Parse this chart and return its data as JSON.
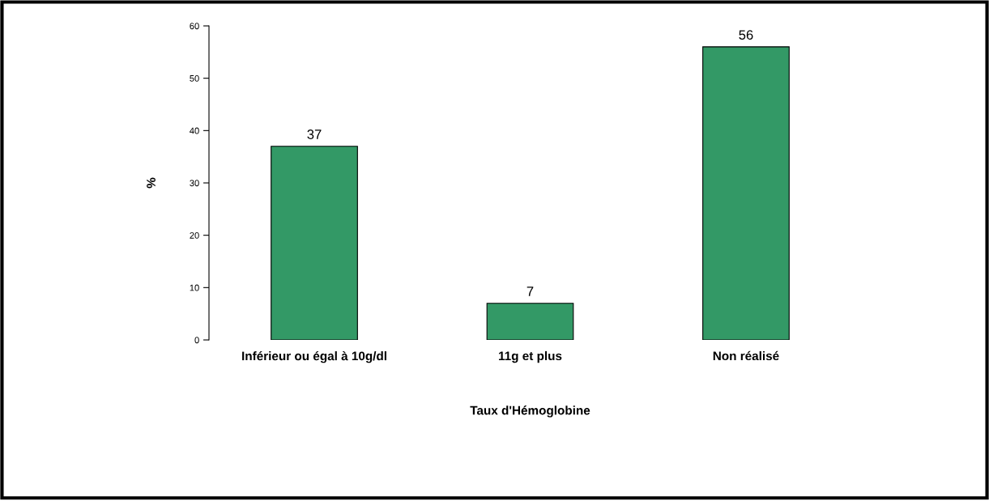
{
  "chart_data": {
    "type": "bar",
    "xlabel": "Taux d'Hémoglobine",
    "ylabel": "%",
    "categories": [
      "Inférieur ou égal à 10g/dl",
      "11g et plus",
      "Non réalisé"
    ],
    "values": [
      37,
      7,
      56
    ],
    "color": "#339966",
    "ylim": [
      0,
      60
    ],
    "yticks": [
      0,
      10,
      20,
      30,
      40,
      50,
      60
    ],
    "grid": false,
    "data_labels": true
  }
}
